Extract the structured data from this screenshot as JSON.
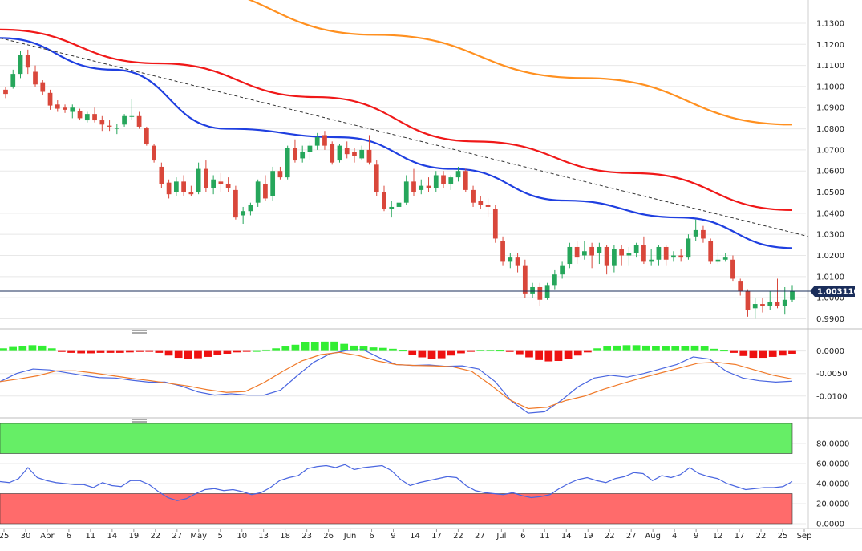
{
  "colors": {
    "up": "#26a65b",
    "down": "#d9473b",
    "ma_fast": "#1f3fe0",
    "ma_mid": "#f01818",
    "ma_slow": "#ff9020",
    "trendline": "#333333",
    "price_line": "#1a2d5a",
    "hist_pos": "#33ee33",
    "hist_neg": "#ee1111",
    "macd": "#4a66e0",
    "signal": "#f07a2a",
    "rsi": "#4a66e0",
    "rsi_overbought": "#66ee66",
    "rsi_oversold": "#ff6b6b",
    "grid": "#e8e8e8",
    "axis_text": "#222222"
  },
  "current_price": "1.003110",
  "chart_data": [
    {
      "type": "candlestick",
      "panel": "price",
      "ylim": [
        0.986,
        1.141
      ],
      "y_ticks": [
        "1.1300",
        "1.1200",
        "1.1100",
        "1.1000",
        "1.0900",
        "1.0800",
        "1.0700",
        "1.0600",
        "1.0500",
        "1.0400",
        "1.0300",
        "1.0200",
        "1.0100",
        "1.0000",
        "0.9900"
      ],
      "grid": true,
      "trend_line": [
        1.123,
        1.029
      ],
      "moving_averages": [
        {
          "color": "ma_slow",
          "values": [
            1.148,
            1.1245,
            1.104,
            1.082
          ]
        },
        {
          "color": "ma_mid",
          "values": [
            1.127,
            1.111,
            1.095,
            1.074,
            1.059,
            1.0415
          ]
        },
        {
          "color": "ma_fast",
          "values": [
            1.123,
            1.108,
            1.08,
            1.076,
            1.061,
            1.046,
            1.038,
            1.0235
          ]
        }
      ],
      "candles": [
        [
          1.0985,
          1.0998,
          1.0945,
          1.0965
        ],
        [
          1.1,
          1.108,
          1.099,
          1.106
        ],
        [
          1.106,
          1.117,
          1.104,
          1.115
        ],
        [
          1.115,
          1.1175,
          1.106,
          1.109
        ],
        [
          1.107,
          1.11,
          1.1,
          1.101
        ],
        [
          1.102,
          1.103,
          1.096,
          1.0975
        ],
        [
          1.097,
          1.0985,
          1.089,
          1.091
        ],
        [
          1.0915,
          1.0935,
          1.088,
          1.0895
        ],
        [
          1.09,
          1.0915,
          1.0875,
          1.089
        ],
        [
          1.088,
          1.0915,
          1.085,
          1.09
        ],
        [
          1.0885,
          1.0895,
          1.084,
          1.085
        ],
        [
          1.084,
          1.088,
          1.083,
          1.087
        ],
        [
          1.087,
          1.09,
          1.083,
          1.084
        ],
        [
          1.084,
          1.086,
          1.079,
          1.082
        ],
        [
          1.0815,
          1.084,
          1.079,
          1.081
        ],
        [
          1.08,
          1.0825,
          1.0775,
          1.0805
        ],
        [
          1.082,
          1.087,
          1.081,
          1.086
        ],
        [
          1.086,
          1.094,
          1.084,
          1.086
        ],
        [
          1.086,
          1.088,
          1.08,
          1.081
        ],
        [
          1.0805,
          1.081,
          1.072,
          1.073
        ],
        [
          1.072,
          1.073,
          1.064,
          1.065
        ],
        [
          1.062,
          1.064,
          1.052,
          1.054
        ],
        [
          1.0545,
          1.056,
          1.047,
          1.049
        ],
        [
          1.05,
          1.057,
          1.048,
          1.055
        ],
        [
          1.055,
          1.058,
          1.048,
          1.05
        ],
        [
          1.05,
          1.053,
          1.048,
          1.049
        ],
        [
          1.05,
          1.064,
          1.049,
          1.061
        ],
        [
          1.061,
          1.065,
          1.05,
          1.052
        ],
        [
          1.052,
          1.058,
          1.049,
          1.056
        ],
        [
          1.055,
          1.059,
          1.05,
          1.054
        ],
        [
          1.054,
          1.057,
          1.05,
          1.052
        ],
        [
          1.051,
          1.053,
          1.037,
          1.038
        ],
        [
          1.039,
          1.043,
          1.035,
          1.041
        ],
        [
          1.041,
          1.045,
          1.039,
          1.044
        ],
        [
          1.045,
          1.056,
          1.043,
          1.055
        ],
        [
          1.054,
          1.058,
          1.046,
          1.047
        ],
        [
          1.048,
          1.062,
          1.046,
          1.06
        ],
        [
          1.06,
          1.062,
          1.056,
          1.057
        ],
        [
          1.057,
          1.072,
          1.056,
          1.071
        ],
        [
          1.071,
          1.075,
          1.064,
          1.065
        ],
        [
          1.066,
          1.072,
          1.064,
          1.069
        ],
        [
          1.069,
          1.074,
          1.065,
          1.072
        ],
        [
          1.072,
          1.078,
          1.07,
          1.076
        ],
        [
          1.077,
          1.079,
          1.07,
          1.072
        ],
        [
          1.073,
          1.074,
          1.063,
          1.064
        ],
        [
          1.065,
          1.073,
          1.064,
          1.072
        ],
        [
          1.071,
          1.074,
          1.066,
          1.068
        ],
        [
          1.069,
          1.071,
          1.064,
          1.067
        ],
        [
          1.066,
          1.072,
          1.065,
          1.07
        ],
        [
          1.07,
          1.077,
          1.063,
          1.064
        ],
        [
          1.063,
          1.065,
          1.048,
          1.05
        ],
        [
          1.05,
          1.053,
          1.041,
          1.042
        ],
        [
          1.042,
          1.046,
          1.038,
          1.043
        ],
        [
          1.043,
          1.048,
          1.037,
          1.045
        ],
        [
          1.045,
          1.058,
          1.044,
          1.055
        ],
        [
          1.055,
          1.061,
          1.048,
          1.05
        ],
        [
          1.051,
          1.056,
          1.049,
          1.053
        ],
        [
          1.053,
          1.057,
          1.05,
          1.052
        ],
        [
          1.052,
          1.06,
          1.05,
          1.058
        ],
        [
          1.058,
          1.06,
          1.052,
          1.054
        ],
        [
          1.054,
          1.058,
          1.051,
          1.057
        ],
        [
          1.057,
          1.062,
          1.055,
          1.06
        ],
        [
          1.06,
          1.061,
          1.05,
          1.051
        ],
        [
          1.051,
          1.053,
          1.043,
          1.045
        ],
        [
          1.046,
          1.048,
          1.042,
          1.044
        ],
        [
          1.044,
          1.047,
          1.038,
          1.043
        ],
        [
          1.042,
          1.044,
          1.026,
          1.028
        ],
        [
          1.027,
          1.029,
          1.015,
          1.017
        ],
        [
          1.017,
          1.021,
          1.014,
          1.019
        ],
        [
          1.019,
          1.021,
          1.012,
          1.015
        ],
        [
          1.015,
          1.018,
          1.0,
          1.002
        ],
        [
          1.002,
          1.007,
          1.0,
          1.005
        ],
        [
          1.005,
          1.007,
          0.996,
          0.999
        ],
        [
          1.0,
          1.007,
          0.999,
          1.006
        ],
        [
          1.006,
          1.013,
          1.004,
          1.011
        ],
        [
          1.011,
          1.017,
          1.009,
          1.015
        ],
        [
          1.016,
          1.026,
          1.014,
          1.024
        ],
        [
          1.024,
          1.027,
          1.016,
          1.019
        ],
        [
          1.02,
          1.027,
          1.018,
          1.022
        ],
        [
          1.024,
          1.026,
          1.014,
          1.02
        ],
        [
          1.021,
          1.026,
          1.016,
          1.024
        ],
        [
          1.024,
          1.025,
          1.011,
          1.015
        ],
        [
          1.015,
          1.025,
          1.012,
          1.023
        ],
        [
          1.023,
          1.025,
          1.015,
          1.02
        ],
        [
          1.02,
          1.024,
          1.015,
          1.021
        ],
        [
          1.021,
          1.026,
          1.019,
          1.025
        ],
        [
          1.025,
          1.029,
          1.016,
          1.017
        ],
        [
          1.017,
          1.023,
          1.015,
          1.018
        ],
        [
          1.018,
          1.025,
          1.015,
          1.024
        ],
        [
          1.024,
          1.025,
          1.015,
          1.018
        ],
        [
          1.019,
          1.022,
          1.017,
          1.02
        ],
        [
          1.02,
          1.023,
          1.017,
          1.019
        ],
        [
          1.019,
          1.03,
          1.018,
          1.028
        ],
        [
          1.029,
          1.037,
          1.027,
          1.032
        ],
        [
          1.032,
          1.034,
          1.026,
          1.028
        ],
        [
          1.027,
          1.028,
          1.016,
          1.017
        ],
        [
          1.017,
          1.021,
          1.016,
          1.018
        ],
        [
          1.018,
          1.021,
          1.017,
          1.019
        ],
        [
          1.018,
          1.02,
          1.008,
          1.009
        ],
        [
          1.008,
          1.009,
          1.001,
          1.003
        ],
        [
          1.003,
          1.004,
          0.991,
          0.994
        ],
        [
          0.995,
          1.0,
          0.99,
          0.997
        ],
        [
          0.997,
          1.0,
          0.993,
          0.996
        ],
        [
          0.996,
          1.003,
          0.994,
          0.998
        ],
        [
          0.998,
          1.009,
          0.995,
          0.996
        ],
        [
          0.996,
          1.005,
          0.992,
          0.999
        ],
        [
          0.999,
          1.006,
          0.998,
          1.003
        ]
      ],
      "x_labels": [
        "25",
        "30",
        "Apr",
        "6",
        "11",
        "14",
        "19",
        "22",
        "27",
        "May",
        "5",
        "10",
        "13",
        "18",
        "23",
        "26",
        "Jun",
        "6",
        "9",
        "14",
        "17",
        "22",
        "27",
        "Jul",
        "6",
        "11",
        "14",
        "19",
        "22",
        "27",
        "Aug",
        "4",
        "9",
        "12",
        "17",
        "22",
        "25",
        "Sep"
      ]
    },
    {
      "type": "bar",
      "panel": "macd",
      "ylim": [
        -0.0145,
        0.0035
      ],
      "y_ticks": [
        "0.0000",
        "-0.0050",
        "-0.0100"
      ],
      "histogram": [
        0.0006,
        0.0009,
        0.0011,
        0.0013,
        0.0012,
        0.0006,
        -0.0002,
        -0.0004,
        -0.0005,
        -0.0005,
        -0.0004,
        -0.0004,
        -0.0004,
        -0.0003,
        -0.0002,
        -0.0001,
        -0.0004,
        -0.001,
        -0.0015,
        -0.0017,
        -0.0016,
        -0.0013,
        -0.0009,
        -0.0006,
        -0.0003,
        -0.0001,
        0.0,
        0.0003,
        0.0006,
        0.001,
        0.0014,
        0.0019,
        0.002,
        0.0021,
        0.0021,
        0.0016,
        0.0012,
        0.001,
        0.0008,
        0.0007,
        0.0005,
        0.0001,
        -0.0008,
        -0.0014,
        -0.0018,
        -0.0016,
        -0.001,
        -0.0005,
        -0.0001,
        0.0002,
        0.0002,
        0.0001,
        -0.0002,
        -0.0007,
        -0.0014,
        -0.002,
        -0.0023,
        -0.0022,
        -0.0018,
        -0.001,
        -0.0003,
        0.0006,
        0.001,
        0.0012,
        0.0013,
        0.0013,
        0.0012,
        0.0011,
        0.001,
        0.001,
        0.0011,
        0.0012,
        0.001,
        0.0005,
        0.0001,
        -0.0004,
        -0.0011,
        -0.0015,
        -0.0015,
        -0.0013,
        -0.001,
        -0.0006
      ],
      "macd": [
        -0.0068,
        -0.005,
        -0.004,
        -0.0042,
        -0.0048,
        -0.0054,
        -0.0059,
        -0.006,
        -0.0065,
        -0.0069,
        -0.0069,
        -0.0078,
        -0.0091,
        -0.0098,
        -0.0095,
        -0.0098,
        -0.0098,
        -0.0087,
        -0.0055,
        -0.0025,
        -0.0006,
        0.0001,
        0.0003,
        -0.0015,
        -0.003,
        -0.0032,
        -0.0031,
        -0.0034,
        -0.0033,
        -0.004,
        -0.0068,
        -0.0112,
        -0.0138,
        -0.0135,
        -0.011,
        -0.008,
        -0.006,
        -0.0054,
        -0.0058,
        -0.005,
        -0.004,
        -0.003,
        -0.0013,
        -0.0018,
        -0.0045,
        -0.006,
        -0.0066,
        -0.0069,
        -0.0067
      ],
      "signal": [
        -0.0068,
        -0.0062,
        -0.0055,
        -0.0044,
        -0.0044,
        -0.0049,
        -0.0055,
        -0.0061,
        -0.0066,
        -0.0072,
        -0.0078,
        -0.0086,
        -0.0092,
        -0.009,
        -0.007,
        -0.0045,
        -0.0022,
        -0.0008,
        -0.0003,
        -0.001,
        -0.0022,
        -0.003,
        -0.0032,
        -0.0033,
        -0.0035,
        -0.0045,
        -0.0075,
        -0.0108,
        -0.0128,
        -0.0125,
        -0.011,
        -0.01,
        -0.0085,
        -0.0072,
        -0.006,
        -0.0049,
        -0.0038,
        -0.0027,
        -0.0025,
        -0.003,
        -0.0042,
        -0.0054,
        -0.0062
      ]
    },
    {
      "type": "line",
      "panel": "rsi",
      "ylim": [
        0,
        100
      ],
      "y_ticks": [
        "80.0000",
        "60.0000",
        "40.0000",
        "20.0000",
        "0.0000"
      ],
      "overbought": 70,
      "oversold": 30,
      "values": [
        42,
        41,
        45,
        56,
        46,
        43,
        41,
        40,
        39,
        39,
        36,
        41,
        38,
        37,
        43,
        43,
        39,
        32,
        26,
        23,
        25,
        30,
        34,
        35,
        33,
        34,
        32,
        29,
        31,
        36,
        43,
        46,
        48,
        55,
        57,
        58,
        56,
        59,
        54,
        56,
        57,
        58,
        53,
        44,
        38,
        41,
        43,
        45,
        47,
        46,
        38,
        33,
        31,
        30,
        29,
        31,
        28,
        26,
        27,
        29,
        35,
        40,
        44,
        46,
        43,
        41,
        45,
        47,
        51,
        50,
        43,
        48,
        46,
        49,
        56,
        50,
        47,
        45,
        40,
        37,
        34,
        35,
        36,
        36,
        37,
        42
      ]
    }
  ]
}
